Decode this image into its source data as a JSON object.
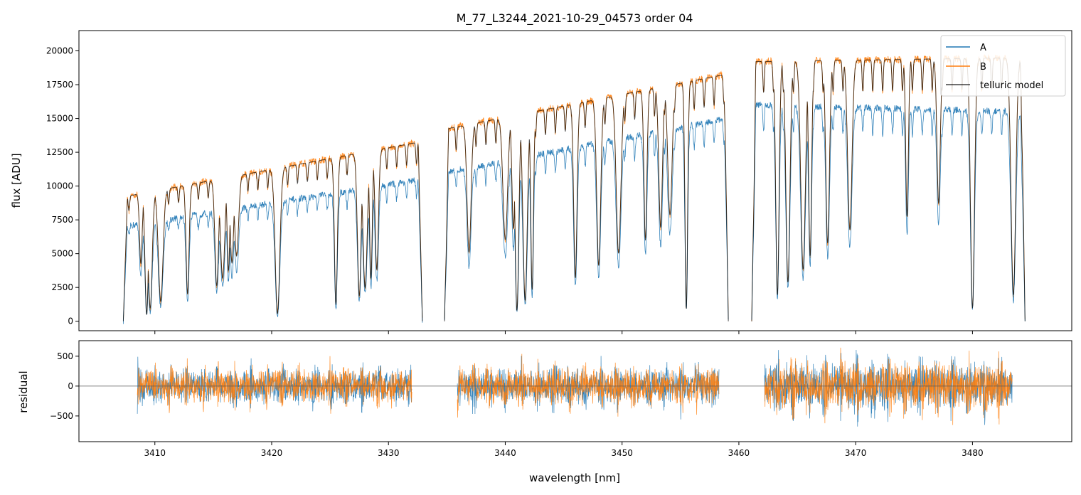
{
  "colors": {
    "A": "#1f77b4",
    "B": "#ff7f0e",
    "model": "#000000",
    "zero_line": "#555555",
    "legend_frame": "#cccccc"
  },
  "chart_data": [
    {
      "type": "line",
      "panel": "flux",
      "title": "M_77_L3244_2021-10-29_04573  order 04",
      "xlabel": "",
      "ylabel": "flux [ADU]",
      "xlim": [
        3403.5,
        3488.5
      ],
      "ylim": [
        -700,
        21500
      ],
      "yticks": [
        0,
        2500,
        5000,
        7500,
        10000,
        12500,
        15000,
        17500,
        20000
      ],
      "ytick_labels": [
        "0",
        "2500",
        "5000",
        "7500",
        "10000",
        "12500",
        "15000",
        "17500",
        "20000"
      ],
      "xticks": [
        3410,
        3420,
        3430,
        3440,
        3450,
        3460,
        3470,
        3480
      ],
      "legend": {
        "placement": "top-right",
        "entries": [
          "A",
          "B",
          "telluric model"
        ]
      },
      "segments": [
        {
          "x_range": [
            3407.3,
            3432.9
          ],
          "A_continuum": [
            7000,
            10500
          ],
          "B_continuum": [
            9200,
            13300
          ]
        },
        {
          "x_range": [
            3434.8,
            3459.1
          ],
          "A_continuum": [
            11000,
            15000
          ],
          "B_continuum": [
            14200,
            18300
          ]
        },
        {
          "x_range": [
            3461.1,
            3484.5
          ],
          "A_continuum": [
            16000,
            15500
          ],
          "B_continuum": [
            19200,
            19500
          ]
        }
      ],
      "absorption_lines_nm": [
        3408.8,
        3409.3,
        3409.6,
        3410.5,
        3412.8,
        3415.3,
        3415.8,
        3416.3,
        3416.6,
        3417.0,
        3420.5,
        3425.5,
        3427.5,
        3428.0,
        3428.5,
        3429.0,
        3436.9,
        3440.0,
        3440.7,
        3441.0,
        3441.7,
        3442.3,
        3446.0,
        3448.0,
        3449.7,
        3452.0,
        3453.3,
        3454.1,
        3455.5,
        3463.3,
        3464.2,
        3465.5,
        3466.1,
        3467.6,
        3469.5,
        3474.4,
        3477.1,
        3480.0,
        3483.5
      ]
    },
    {
      "type": "line",
      "panel": "residual",
      "xlabel": "wavelength [nm]",
      "ylabel": "residual",
      "xlim": [
        3403.5,
        3488.5
      ],
      "ylim": [
        -930,
        760
      ],
      "yticks": [
        -500,
        0,
        500
      ],
      "ytick_labels": [
        "−500",
        "0",
        "500"
      ],
      "xticks": [
        3410,
        3420,
        3430,
        3440,
        3450,
        3460,
        3470,
        3480
      ],
      "xtick_labels": [
        "3410",
        "3420",
        "3430",
        "3440",
        "3450",
        "3460",
        "3470",
        "3480"
      ],
      "segments": [
        {
          "x_range": [
            3408.5,
            3432.0
          ],
          "amplitude": 220
        },
        {
          "x_range": [
            3435.9,
            3458.3
          ],
          "amplitude": 230
        },
        {
          "x_range": [
            3462.2,
            3483.4
          ],
          "amplitude": 300
        }
      ],
      "zero_line": 0
    }
  ]
}
